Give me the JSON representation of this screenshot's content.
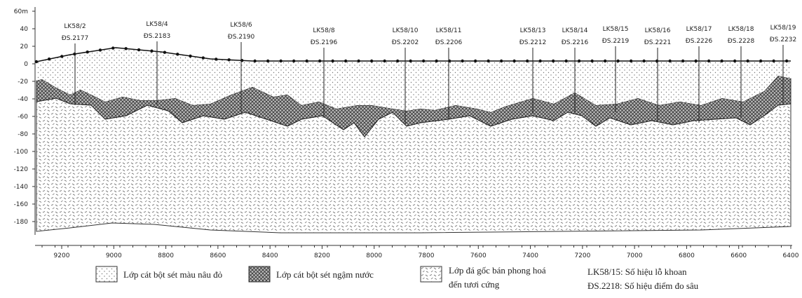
{
  "y_axis": {
    "ticks": [
      {
        "value": 60,
        "label": "60m"
      },
      40,
      20,
      0,
      -20,
      -40,
      -60,
      -80,
      -100,
      -120,
      -140,
      -160,
      -180
    ]
  },
  "x_axis": {
    "ticks": [
      9200,
      9000,
      8800,
      8600,
      8400,
      8200,
      8000,
      7800,
      7600,
      7400,
      7200,
      7000,
      6800,
      6600,
      6400
    ]
  },
  "boreholes": [
    {
      "id": "LK58/2",
      "sounding": "ĐS.2177"
    },
    {
      "id": "LK58/4",
      "sounding": "ĐS.2183"
    },
    {
      "id": "LK58/6",
      "sounding": "ĐS.2190"
    },
    {
      "id": "LK58/8",
      "sounding": "ĐS.2196"
    },
    {
      "id": "LK58/10",
      "sounding": "ĐS.2202"
    },
    {
      "id": "LK58/11",
      "sounding": "ĐS.2206"
    },
    {
      "id": "LK58/13",
      "sounding": "ĐS.2212"
    },
    {
      "id": "LK58/14",
      "sounding": "ĐS.2216"
    },
    {
      "id": "LK58/15",
      "sounding": "ĐS.2219"
    },
    {
      "id": "LK58/16",
      "sounding": "ĐS.2221"
    },
    {
      "id": "LK58/17",
      "sounding": "ĐS.2226"
    },
    {
      "id": "LK58/18",
      "sounding": "ĐS.2228"
    },
    {
      "id": "LK58/19",
      "sounding": "ĐS.2232"
    }
  ],
  "legend": {
    "layer_1": "Lớp cát bột sét màu nâu đỏ",
    "layer_2": "Lớp cát bột sét ngậm nước",
    "layer_3": [
      "Lớp đá gốc bán phong hoá",
      "đến tươi cứng"
    ],
    "borehole_note": "LK58/15: Số hiệu lỗ khoan",
    "sounding_note": "ĐS.2218: Số hiệu điểm đo sâu"
  }
}
